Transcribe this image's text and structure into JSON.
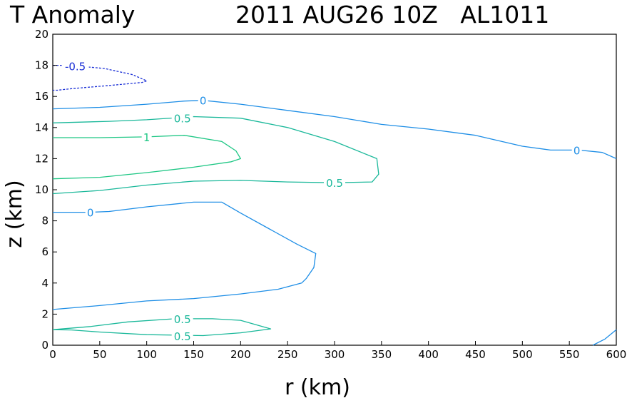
{
  "chart_data": {
    "type": "line",
    "title_left": "T Anomaly",
    "title_right": "2011 AUG26 10Z   AL1011",
    "xlabel": "r (km)",
    "ylabel": "z (km)",
    "xlim": [
      0,
      600
    ],
    "ylim": [
      0,
      20
    ],
    "xticks": [
      0,
      50,
      100,
      150,
      200,
      250,
      300,
      350,
      400,
      450,
      500,
      550,
      600
    ],
    "yticks": [
      0,
      2,
      4,
      6,
      8,
      10,
      12,
      14,
      16,
      18,
      20
    ],
    "grid": false,
    "colors": {
      "neg": "#1a2fd6",
      "zero": "#1e8ee6",
      "half": "#1ab89a",
      "one": "#1fc785"
    },
    "contours": [
      {
        "level": "-0.5",
        "style": "neg",
        "dashed": true,
        "x": [
          0,
          18,
          55,
          85,
          100,
          95,
          60,
          20,
          5,
          0
        ],
        "y": [
          18.0,
          18.0,
          17.8,
          17.4,
          17.0,
          16.9,
          16.7,
          16.5,
          16.4,
          16.4
        ]
      },
      {
        "level": "0",
        "style": "zero",
        "dashed": false,
        "x": [
          0,
          50,
          100,
          140,
          160,
          200,
          250,
          300,
          350,
          400,
          450,
          500,
          530,
          560,
          585,
          600
        ],
        "y": [
          15.2,
          15.3,
          15.5,
          15.7,
          15.75,
          15.5,
          15.1,
          14.7,
          14.2,
          13.9,
          13.5,
          12.8,
          12.55,
          12.55,
          12.4,
          12.0
        ]
      },
      {
        "level": "0.5",
        "style": "half",
        "dashed": false,
        "x": [
          0,
          60,
          100,
          150,
          200,
          250,
          300,
          345,
          347,
          340,
          300,
          250,
          200,
          150,
          100,
          50,
          0
        ],
        "y": [
          14.3,
          14.4,
          14.5,
          14.7,
          14.6,
          14.0,
          13.1,
          12.0,
          11.0,
          10.5,
          10.45,
          10.5,
          10.6,
          10.55,
          10.3,
          9.95,
          9.75
        ]
      },
      {
        "level": "1",
        "style": "one",
        "dashed": false,
        "x": [
          0,
          50,
          100,
          140,
          180,
          195,
          200,
          190,
          150,
          100,
          50,
          0
        ],
        "y": [
          13.35,
          13.35,
          13.4,
          13.5,
          13.1,
          12.5,
          12.0,
          11.8,
          11.45,
          11.1,
          10.8,
          10.7
        ]
      },
      {
        "level": "0",
        "style": "zero",
        "dashed": false,
        "x": [
          0,
          40,
          60,
          100,
          150,
          180,
          200,
          230,
          260,
          280,
          278,
          270,
          265,
          240,
          200,
          150,
          100,
          50,
          0
        ],
        "y": [
          8.55,
          8.55,
          8.6,
          8.9,
          9.2,
          9.2,
          8.5,
          7.5,
          6.5,
          5.9,
          5.0,
          4.3,
          4.0,
          3.6,
          3.3,
          3.0,
          2.85,
          2.55,
          2.3
        ]
      },
      {
        "level": "0.5",
        "style": "half",
        "dashed": false,
        "x": [
          0,
          40,
          80,
          130,
          170,
          200,
          232,
          200,
          160,
          100,
          50,
          20,
          0
        ],
        "y": [
          1.0,
          1.2,
          1.5,
          1.7,
          1.7,
          1.6,
          1.05,
          0.8,
          0.62,
          0.68,
          0.85,
          0.98,
          1.0
        ]
      },
      {
        "level": "0",
        "style": "zero",
        "dashed": false,
        "x": [
          575,
          588,
          600
        ],
        "y": [
          0,
          0.4,
          1.0
        ]
      }
    ],
    "contour_labels": [
      {
        "text": "-0.5",
        "style": "neg",
        "x": 24,
        "y": 17.95
      },
      {
        "text": "0",
        "style": "zero",
        "x": 160,
        "y": 15.75
      },
      {
        "text": "0.5",
        "style": "half",
        "x": 138,
        "y": 14.6
      },
      {
        "text": "1",
        "style": "one",
        "x": 100,
        "y": 13.4
      },
      {
        "text": "0.5",
        "style": "half",
        "x": 300,
        "y": 10.45
      },
      {
        "text": "0",
        "style": "zero",
        "x": 558,
        "y": 12.55
      },
      {
        "text": "0",
        "style": "zero",
        "x": 40,
        "y": 8.55
      },
      {
        "text": "0.5",
        "style": "half",
        "x": 138,
        "y": 1.7
      },
      {
        "text": "0.5",
        "style": "half",
        "x": 138,
        "y": 0.6
      }
    ]
  }
}
